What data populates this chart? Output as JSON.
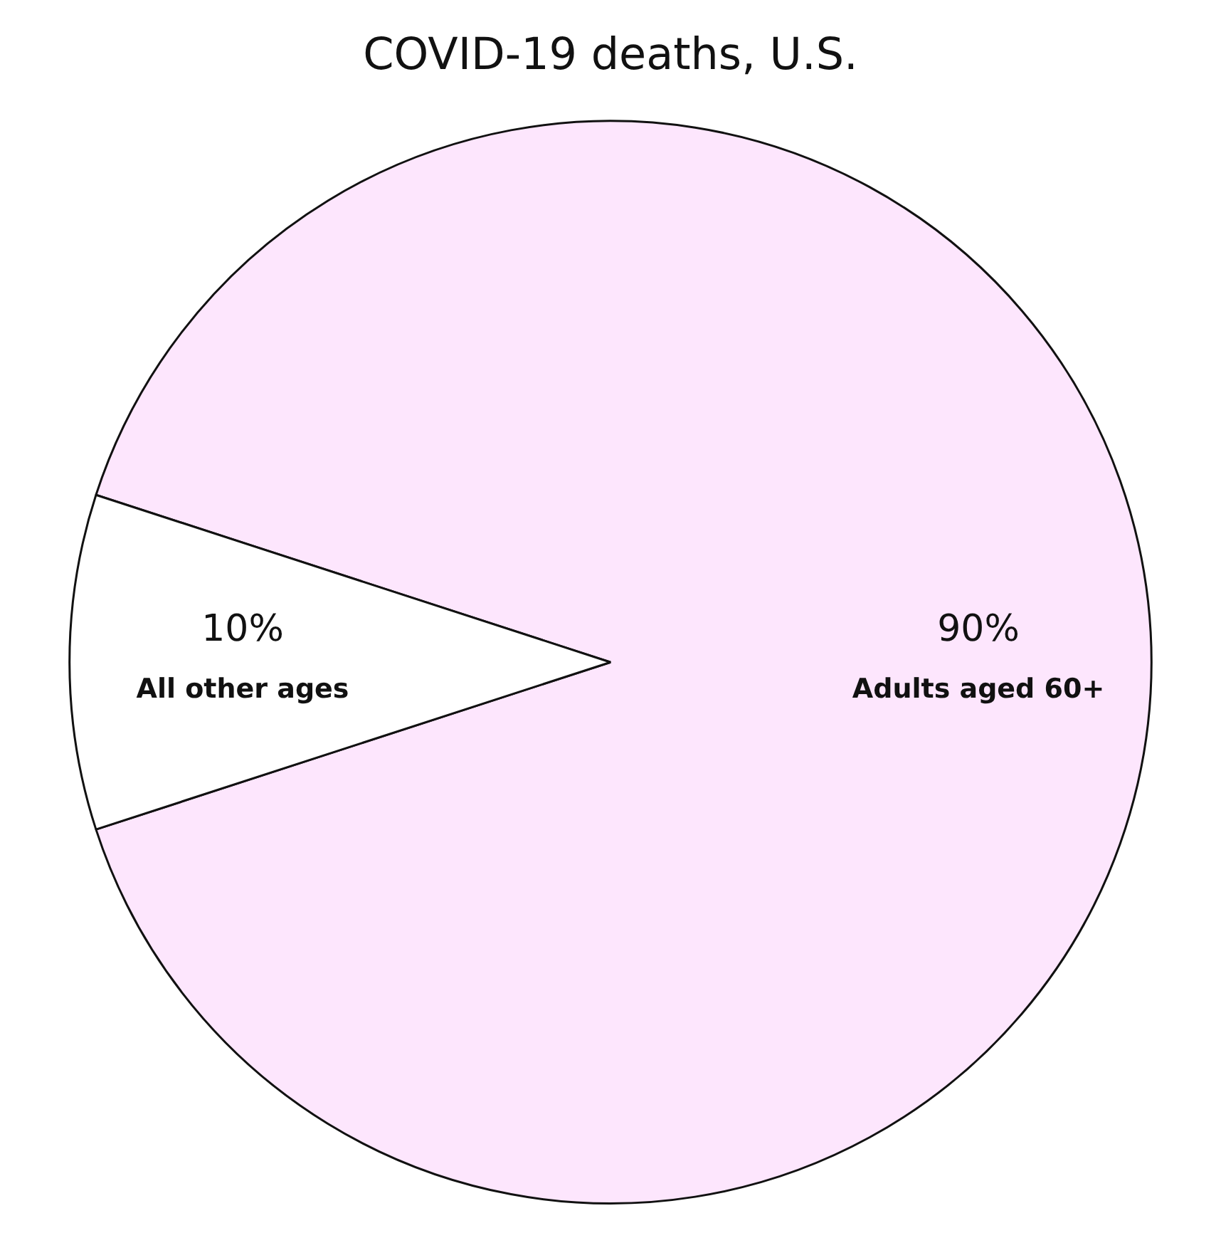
{
  "chart_data": {
    "type": "pie",
    "title": "COVID-19 deaths, U.S.",
    "categories": [
      "Adults aged 60+",
      "All other ages"
    ],
    "values": [
      90,
      10
    ],
    "colors": [
      "#fde6fd",
      "#ffffff"
    ],
    "value_labels": [
      "90%",
      "10%"
    ],
    "legend": false
  }
}
